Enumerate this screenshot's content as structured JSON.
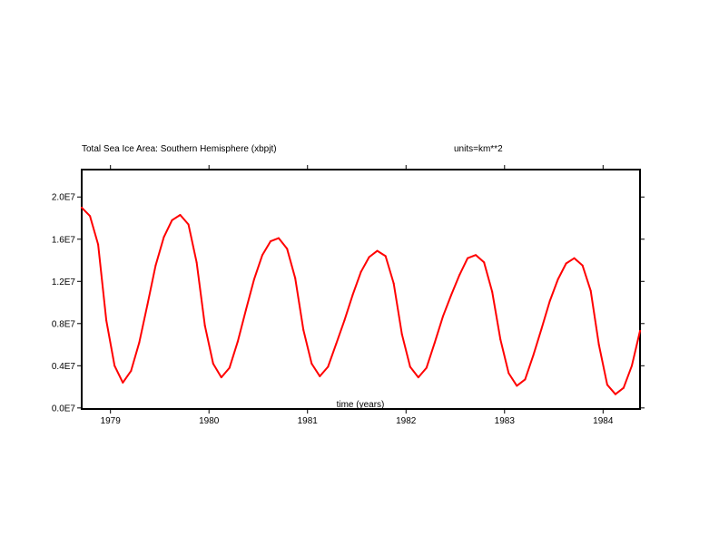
{
  "header": {
    "title": "Total Sea Ice Area: Southern Hemisphere (xbpjt)",
    "units": "units=km**2"
  },
  "chart_data": {
    "type": "line",
    "title": "Total Sea Ice Area: Southern Hemisphere (xbpjt)",
    "units_label": "units=km**2",
    "xlabel": "time (years)",
    "ylabel": "",
    "x_tick_labels": [
      "1979",
      "1980",
      "1981",
      "1982",
      "1983",
      "1984"
    ],
    "x_ticks": [
      1979.0,
      1980.0,
      1981.0,
      1982.0,
      1983.0,
      1984.0
    ],
    "y_tick_labels": [
      "0.0E7",
      "0.4E7",
      "0.8E7",
      "1.2E7",
      "1.6E7",
      "2.0E7"
    ],
    "y_ticks": [
      0,
      4000000,
      8000000,
      12000000,
      16000000,
      20000000
    ],
    "xlim": [
      1978.708,
      1984.375
    ],
    "ylim": [
      -100000,
      22600000
    ],
    "grid": false,
    "series": [
      {
        "color": "#ff0000",
        "x": [
          1978.708,
          1978.792,
          1978.875,
          1978.958,
          1979.042,
          1979.125,
          1979.208,
          1979.292,
          1979.375,
          1979.458,
          1979.542,
          1979.625,
          1979.708,
          1979.792,
          1979.875,
          1979.958,
          1980.042,
          1980.125,
          1980.208,
          1980.292,
          1980.375,
          1980.458,
          1980.542,
          1980.625,
          1980.708,
          1980.792,
          1980.875,
          1980.958,
          1981.042,
          1981.125,
          1981.208,
          1981.292,
          1981.375,
          1981.458,
          1981.542,
          1981.625,
          1981.708,
          1981.792,
          1981.875,
          1981.958,
          1982.042,
          1982.125,
          1982.208,
          1982.292,
          1982.375,
          1982.458,
          1982.542,
          1982.625,
          1982.708,
          1982.792,
          1982.875,
          1982.958,
          1983.042,
          1983.125,
          1983.208,
          1983.292,
          1983.375,
          1983.458,
          1983.542,
          1983.625,
          1983.708,
          1983.792,
          1983.875,
          1983.958,
          1984.042,
          1984.125,
          1984.208,
          1984.292,
          1984.375
        ],
        "y": [
          19000000,
          18200000,
          15500000,
          8300000,
          4000000,
          2400000,
          3500000,
          6200000,
          9800000,
          13500000,
          16200000,
          17800000,
          18300000,
          17400000,
          13800000,
          7800000,
          4200000,
          2900000,
          3800000,
          6300000,
          9300000,
          12200000,
          14500000,
          15800000,
          16100000,
          15100000,
          12300000,
          7400000,
          4200000,
          3000000,
          3900000,
          6100000,
          8300000,
          10700000,
          12900000,
          14300000,
          14900000,
          14400000,
          11800000,
          7000000,
          3900000,
          2900000,
          3800000,
          6200000,
          8700000,
          10700000,
          12600000,
          14200000,
          14500000,
          13800000,
          11000000,
          6500000,
          3300000,
          2100000,
          2700000,
          5000000,
          7500000,
          10100000,
          12200000,
          13700000,
          14200000,
          13500000,
          11100000,
          6000000,
          2200000,
          1300000,
          1900000,
          4000000,
          7300000
        ]
      }
    ]
  }
}
